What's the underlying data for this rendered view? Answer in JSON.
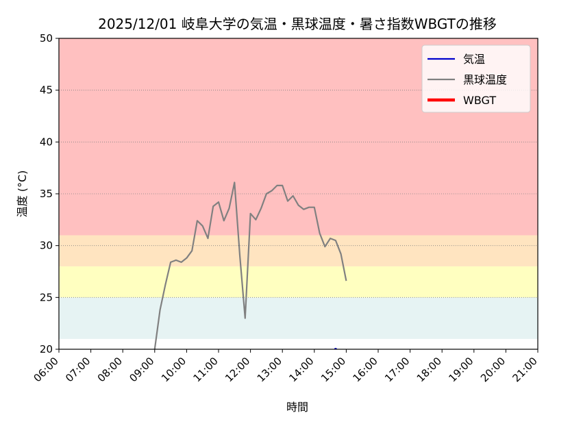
{
  "chart_data": {
    "type": "line",
    "title": "2025/12/01 岐阜大学の気温・黒球温度・暑さ指数WBGTの推移",
    "xlabel": "時間",
    "ylabel": "温度 (°C)",
    "ylim": [
      20,
      50
    ],
    "yticks": [
      20,
      25,
      30,
      35,
      40,
      45,
      50
    ],
    "xlim": [
      "06:00",
      "21:00"
    ],
    "xticks": [
      "06:00",
      "07:00",
      "08:00",
      "09:00",
      "10:00",
      "11:00",
      "12:00",
      "13:00",
      "14:00",
      "15:00",
      "16:00",
      "17:00",
      "18:00",
      "19:00",
      "20:00",
      "21:00"
    ],
    "grid": "horizontal dotted",
    "legend_position": "top-right",
    "bands": [
      {
        "from": 21,
        "to": 25,
        "color": "#e6f3f3"
      },
      {
        "from": 25,
        "to": 28,
        "color": "#ffffc0"
      },
      {
        "from": 28,
        "to": 31,
        "color": "#ffe4c0"
      },
      {
        "from": 31,
        "to": 50,
        "color": "#ffc0c0"
      }
    ],
    "series": [
      {
        "name": "気温",
        "color": "#0000cc",
        "x": [
          "14:40"
        ],
        "values": [
          20.0
        ]
      },
      {
        "name": "黒球温度",
        "color": "#808080",
        "x": [
          "08:50",
          "09:00",
          "09:10",
          "09:20",
          "09:30",
          "09:40",
          "09:50",
          "10:00",
          "10:10",
          "10:20",
          "10:30",
          "10:40",
          "10:50",
          "11:00",
          "11:10",
          "11:20",
          "11:30",
          "11:40",
          "11:50",
          "12:00",
          "12:10",
          "12:20",
          "12:30",
          "12:40",
          "12:50",
          "13:00",
          "13:10",
          "13:20",
          "13:30",
          "13:40",
          "13:50",
          "14:00",
          "14:10",
          "14:20",
          "14:30",
          "14:40",
          "14:50",
          "15:00"
        ],
        "values": [
          13.5,
          20.0,
          23.8,
          26.2,
          28.4,
          28.6,
          28.4,
          28.8,
          29.5,
          32.4,
          31.9,
          30.7,
          33.8,
          34.2,
          32.4,
          33.6,
          36.1,
          29.0,
          23.0,
          33.1,
          32.5,
          33.6,
          35.0,
          35.3,
          35.8,
          35.8,
          34.3,
          34.8,
          33.9,
          33.5,
          33.7,
          33.7,
          31.2,
          29.9,
          30.7,
          30.5,
          29.2,
          26.6
        ]
      },
      {
        "name": "WBGT",
        "color": "#ff0000",
        "x": [],
        "values": []
      }
    ]
  }
}
